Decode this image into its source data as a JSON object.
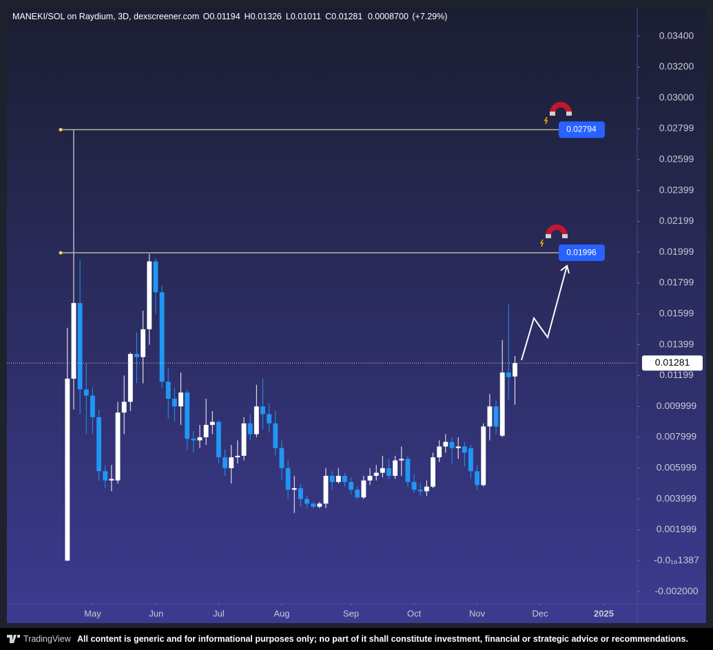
{
  "chart_data": {
    "type": "candlestick",
    "title": "MANEKI/SOL on Raydium, 3D, dexscreener.com",
    "ohlc_labels": [
      "O",
      "H",
      "L",
      "C"
    ],
    "ohlc_values": [
      0.01194,
      0.01326,
      0.01011,
      0.01281
    ],
    "change": {
      "value": 0.00087,
      "label": "0.0008700"
    },
    "change_pct": {
      "value": 7.29,
      "label": "(+7.29%)"
    },
    "up_color": "#ffffff",
    "down_color": "#2196f3",
    "open": [
      0.0,
      0.0118,
      0.0167,
      0.0111,
      0.0107,
      0.0093,
      0.0058,
      0.0052,
      0.0052,
      0.0096,
      0.0103,
      0.0134,
      0.0132,
      0.015,
      0.0194,
      0.0174,
      0.0116,
      0.0105,
      0.01,
      0.0109,
      0.0079,
      0.0078,
      0.008,
      0.0088,
      0.009,
      0.0067,
      0.006,
      0.0067,
      0.0068,
      0.0089,
      0.0082,
      0.01,
      0.0095,
      0.0089,
      0.0073,
      0.006,
      0.0046,
      0.0047,
      0.004,
      0.0037,
      0.0035,
      0.0037,
      0.0055,
      0.0051,
      0.0055,
      0.0051,
      0.0046,
      0.0041,
      0.0052,
      0.0055,
      0.0057,
      0.006,
      0.0055,
      0.0065,
      0.0066,
      0.0051,
      0.0046,
      0.0045,
      0.0048,
      0.0067,
      0.0074,
      0.0077,
      0.0073,
      0.0074,
      0.0073,
      0.0058,
      0.0049,
      0.0087,
      0.01,
      0.0081,
      0.0122,
      0.01194
    ],
    "high": [
      0.0151,
      0.0279,
      0.0195,
      0.0128,
      0.0112,
      0.0098,
      0.0062,
      0.0062,
      0.0103,
      0.012,
      0.0135,
      0.0148,
      0.0162,
      0.0199,
      0.0196,
      0.0178,
      0.0125,
      0.0112,
      0.0122,
      0.0111,
      0.0084,
      0.0088,
      0.0105,
      0.0097,
      0.0091,
      0.0072,
      0.0075,
      0.0078,
      0.0093,
      0.0095,
      0.0114,
      0.0118,
      0.0102,
      0.0097,
      0.0078,
      0.0065,
      0.0055,
      0.005,
      0.0042,
      0.0038,
      0.0038,
      0.006,
      0.0058,
      0.006,
      0.0057,
      0.0054,
      0.0048,
      0.0055,
      0.006,
      0.0062,
      0.0068,
      0.0066,
      0.0068,
      0.0074,
      0.0068,
      0.0056,
      0.005,
      0.0052,
      0.007,
      0.0078,
      0.0082,
      0.008,
      0.008,
      0.0077,
      0.0075,
      0.0062,
      0.0089,
      0.0108,
      0.0104,
      0.0143,
      0.0166,
      0.01326
    ],
    "low": [
      0.0,
      0.0098,
      0.0095,
      0.0082,
      0.0082,
      0.0052,
      0.0047,
      0.0045,
      0.005,
      0.0082,
      0.0097,
      0.0115,
      0.0115,
      0.014,
      0.016,
      0.0112,
      0.0092,
      0.009,
      0.0088,
      0.0072,
      0.007,
      0.0073,
      0.0075,
      0.0082,
      0.0063,
      0.0055,
      0.005,
      0.0063,
      0.0065,
      0.0078,
      0.008,
      0.0085,
      0.0083,
      0.0068,
      0.0052,
      0.004,
      0.0031,
      0.0035,
      0.0034,
      0.0034,
      0.0034,
      0.0034,
      0.0046,
      0.005,
      0.0048,
      0.0043,
      0.004,
      0.004,
      0.0049,
      0.0052,
      0.0054,
      0.0053,
      0.0053,
      0.0055,
      0.0048,
      0.0044,
      0.0042,
      0.0042,
      0.0047,
      0.0064,
      0.007,
      0.0063,
      0.0066,
      0.0061,
      0.0053,
      0.0046,
      0.0048,
      0.0078,
      0.0082,
      0.008,
      0.0104,
      0.01011
    ],
    "close": [
      0.0118,
      0.0167,
      0.0111,
      0.0107,
      0.0093,
      0.0058,
      0.0052,
      0.0053,
      0.0096,
      0.0103,
      0.0134,
      0.0132,
      0.015,
      0.0194,
      0.0174,
      0.0116,
      0.0105,
      0.01,
      0.0109,
      0.0079,
      0.0078,
      0.008,
      0.0088,
      0.009,
      0.0067,
      0.006,
      0.0067,
      0.0068,
      0.0089,
      0.0082,
      0.01,
      0.0095,
      0.0089,
      0.0073,
      0.006,
      0.0046,
      0.0047,
      0.004,
      0.0037,
      0.0035,
      0.0037,
      0.0055,
      0.0051,
      0.0055,
      0.0051,
      0.0046,
      0.0041,
      0.0052,
      0.0055,
      0.0057,
      0.006,
      0.0055,
      0.0065,
      0.0066,
      0.0051,
      0.0046,
      0.0045,
      0.0048,
      0.0067,
      0.0074,
      0.0077,
      0.0073,
      0.0074,
      0.007,
      0.0058,
      0.0049,
      0.0087,
      0.01,
      0.0087,
      0.0122,
      0.0119,
      0.01281
    ],
    "xlim": [
      -9.6,
      90.4
    ],
    "xticks": [
      {
        "value": 4.0,
        "label": "May"
      },
      {
        "value": 14.1,
        "label": "Jun"
      },
      {
        "value": 24.0,
        "label": "Jul"
      },
      {
        "value": 34.0,
        "label": "Aug"
      },
      {
        "value": 45.0,
        "label": "Sep"
      },
      {
        "value": 55.0,
        "label": "Oct"
      },
      {
        "value": 65.0,
        "label": "Nov"
      },
      {
        "value": 75.0,
        "label": "Dec"
      },
      {
        "value": 85.1,
        "label": "2025"
      }
    ],
    "ylim": [
      -0.0028,
      0.0359
    ],
    "yticks": [
      {
        "value": 0.034,
        "label": "0.03400"
      },
      {
        "value": 0.032,
        "label": "0.03200"
      },
      {
        "value": 0.03,
        "label": "0.03000"
      },
      {
        "value": 0.028,
        "label": "0.02799"
      },
      {
        "value": 0.026,
        "label": "0.02599"
      },
      {
        "value": 0.024,
        "label": "0.02399"
      },
      {
        "value": 0.022,
        "label": "0.02199"
      },
      {
        "value": 0.02,
        "label": "0.01999"
      },
      {
        "value": 0.018,
        "label": "0.01799"
      },
      {
        "value": 0.016,
        "label": "0.01599"
      },
      {
        "value": 0.014,
        "label": "0.01399"
      },
      {
        "value": 0.012,
        "label": "0.01199"
      },
      {
        "value": 0.01,
        "label": "0.009999"
      },
      {
        "value": 0.008,
        "label": "0.007999"
      },
      {
        "value": 0.006,
        "label": "0.005999"
      },
      {
        "value": 0.004,
        "label": "0.003999"
      },
      {
        "value": 0.002,
        "label": "0.001999"
      },
      {
        "value": 0.0,
        "label": "-0.0₁₆1387"
      },
      {
        "value": -0.002,
        "label": "-0.002000"
      }
    ],
    "levels": [
      0.02794,
      0.01996
    ],
    "level_color": "#2962ff",
    "last_price": 0.01281
  },
  "footer": {
    "brand": "TradingView",
    "disclaimer": "All content is generic and for informational purposes only; no part of it shall constitute investment, financial or strategic advice or recommendations."
  }
}
